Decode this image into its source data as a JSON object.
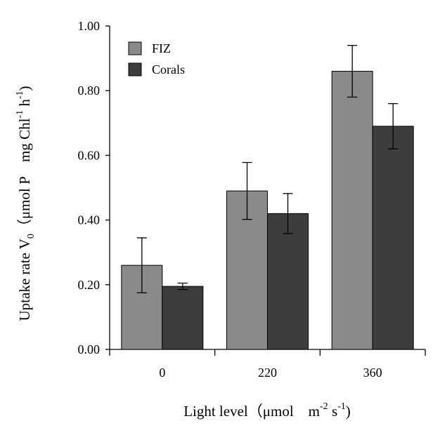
{
  "chart_data": {
    "type": "bar",
    "categories": [
      "0",
      "220",
      "360"
    ],
    "series": [
      {
        "name": "FIZ",
        "values": [
          0.26,
          0.49,
          0.86
        ],
        "errors": [
          0.085,
          0.088,
          0.08
        ],
        "color": "#8a8a8a"
      },
      {
        "name": "Corals",
        "values": [
          0.195,
          0.42,
          0.69
        ],
        "errors": [
          0.01,
          0.062,
          0.07
        ],
        "color": "#3d3d3d"
      }
    ],
    "ylim": [
      0,
      1.0
    ],
    "yticks": [
      "0.00",
      "0.20",
      "0.40",
      "0.60",
      "0.80",
      "1.00"
    ],
    "xlabel": {
      "text": "Light level（μmol　m",
      "sup1": "-2",
      "mid": " s",
      "sup2": "-1",
      "end": ")"
    },
    "ylabel": {
      "text": "Uptake rate V",
      "sub": "0",
      "mid": "（μmol P　mg Chl",
      "sup1": "-1",
      "mid2": " h",
      "sup2": "-1",
      "end": ")"
    },
    "legend_position": "top-left",
    "grid": false
  }
}
